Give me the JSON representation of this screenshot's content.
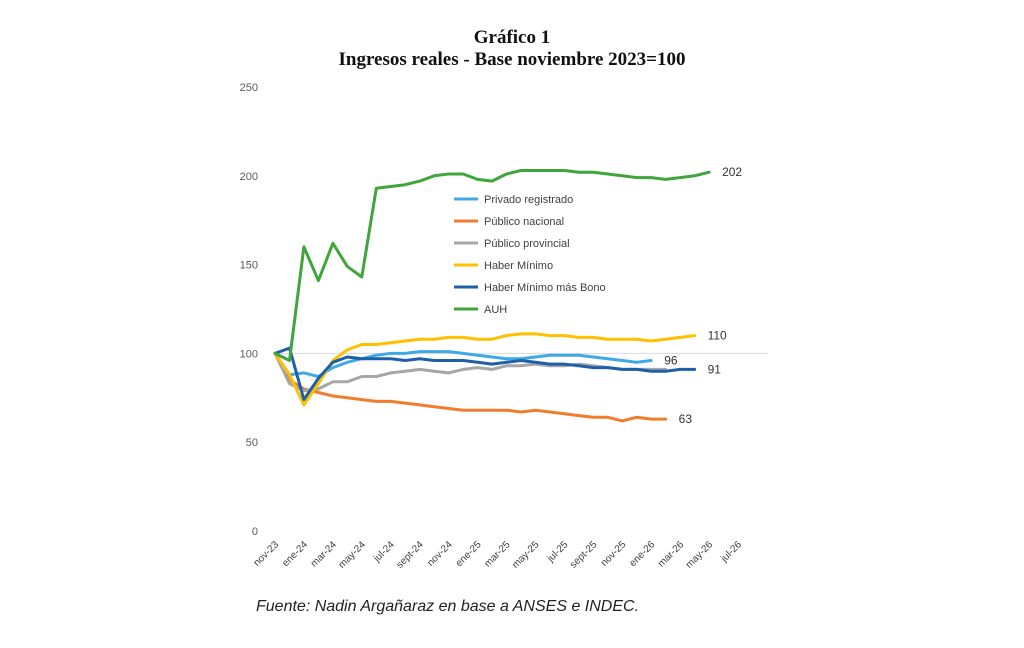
{
  "title": "Gráfico 1",
  "subtitle": "Ingresos reales - Base noviembre 2023=100",
  "source": "Fuente: Nadin Argañaraz en base a ANSES e INDEC.",
  "chart_data": {
    "type": "line",
    "ylim": [
      0,
      250
    ],
    "yticks": [
      0,
      50,
      100,
      150,
      200,
      250
    ],
    "x": [
      "nov-23",
      "dic-23",
      "ene-24",
      "feb-24",
      "mar-24",
      "abr-24",
      "may-24",
      "jun-24",
      "jul-24",
      "ago-24",
      "sept-24",
      "oct-24",
      "nov-24",
      "dic-24",
      "ene-25",
      "feb-25",
      "mar-25",
      "abr-25",
      "may-25",
      "jun-25",
      "jul-25",
      "ago-25",
      "sept-25",
      "oct-25",
      "nov-25",
      "dic-25",
      "ene-26",
      "feb-26",
      "mar-26",
      "abr-26",
      "may-26",
      "jun-26",
      "jul-26"
    ],
    "xtick_labels": [
      "nov-23",
      "",
      "ene-24",
      "",
      "mar-24",
      "",
      "may-24",
      "",
      "jul-24",
      "",
      "sept-24",
      "",
      "nov-24",
      "",
      "ene-25",
      "",
      "mar-25",
      "",
      "may-25",
      "",
      "jul-25",
      "",
      "sept-25",
      "",
      "nov-25",
      "",
      "ene-26",
      "",
      "mar-26",
      "",
      "may-26",
      "",
      "jul-26"
    ],
    "legend_position": "inside-upper-middle",
    "reference_line": 100,
    "series": [
      {
        "name": "Privado registrado",
        "color": "#3fa9e6",
        "values": [
          100,
          88,
          89,
          87,
          92,
          95,
          97,
          99,
          100,
          100,
          101,
          101,
          101,
          100,
          99,
          98,
          97,
          97,
          98,
          99,
          99,
          99,
          98,
          97,
          96,
          95,
          96,
          null,
          null,
          null,
          null,
          null,
          null
        ]
      },
      {
        "name": "Público nacional",
        "color": "#f07d2c",
        "values": [
          100,
          85,
          80,
          78,
          76,
          75,
          74,
          73,
          73,
          72,
          71,
          70,
          69,
          68,
          68,
          68,
          68,
          67,
          68,
          67,
          66,
          65,
          64,
          64,
          62,
          64,
          63,
          63,
          null,
          null,
          null,
          null,
          null
        ]
      },
      {
        "name": "Público provincial",
        "color": "#a6a6a6",
        "values": [
          100,
          83,
          79,
          80,
          84,
          84,
          87,
          87,
          89,
          90,
          91,
          90,
          89,
          91,
          92,
          91,
          93,
          93,
          94,
          93,
          93,
          94,
          93,
          92,
          91,
          91,
          91,
          91,
          null,
          null,
          null,
          null,
          null
        ]
      },
      {
        "name": "Haber Mínimo",
        "color": "#ffc000",
        "values": [
          100,
          88,
          71,
          83,
          96,
          102,
          105,
          105,
          106,
          107,
          108,
          108,
          109,
          109,
          108,
          108,
          110,
          111,
          111,
          110,
          110,
          109,
          109,
          108,
          108,
          108,
          107,
          108,
          109,
          110,
          null,
          null,
          null
        ]
      },
      {
        "name": "Haber Mínimo más Bono",
        "color": "#1f5fa9",
        "values": [
          100,
          103,
          74,
          86,
          95,
          98,
          97,
          97,
          97,
          96,
          97,
          96,
          96,
          96,
          95,
          94,
          95,
          96,
          95,
          94,
          94,
          93,
          92,
          92,
          91,
          91,
          90,
          90,
          91,
          91,
          null,
          null,
          null
        ]
      },
      {
        "name": "AUH",
        "color": "#3ea63a",
        "values": [
          100,
          96,
          160,
          141,
          162,
          149,
          143,
          193,
          194,
          195,
          197,
          200,
          201,
          201,
          198,
          197,
          201,
          203,
          203,
          203,
          203,
          202,
          202,
          201,
          200,
          199,
          199,
          198,
          199,
          200,
          202,
          null,
          null
        ]
      }
    ],
    "end_labels": [
      {
        "series": "AUH",
        "text": "202"
      },
      {
        "series": "Haber Mínimo",
        "text": "110"
      },
      {
        "series": "Privado registrado",
        "text": "96"
      },
      {
        "series": "Haber Mínimo más Bono",
        "text": "91"
      },
      {
        "series": "Público nacional",
        "text": "63"
      }
    ]
  }
}
